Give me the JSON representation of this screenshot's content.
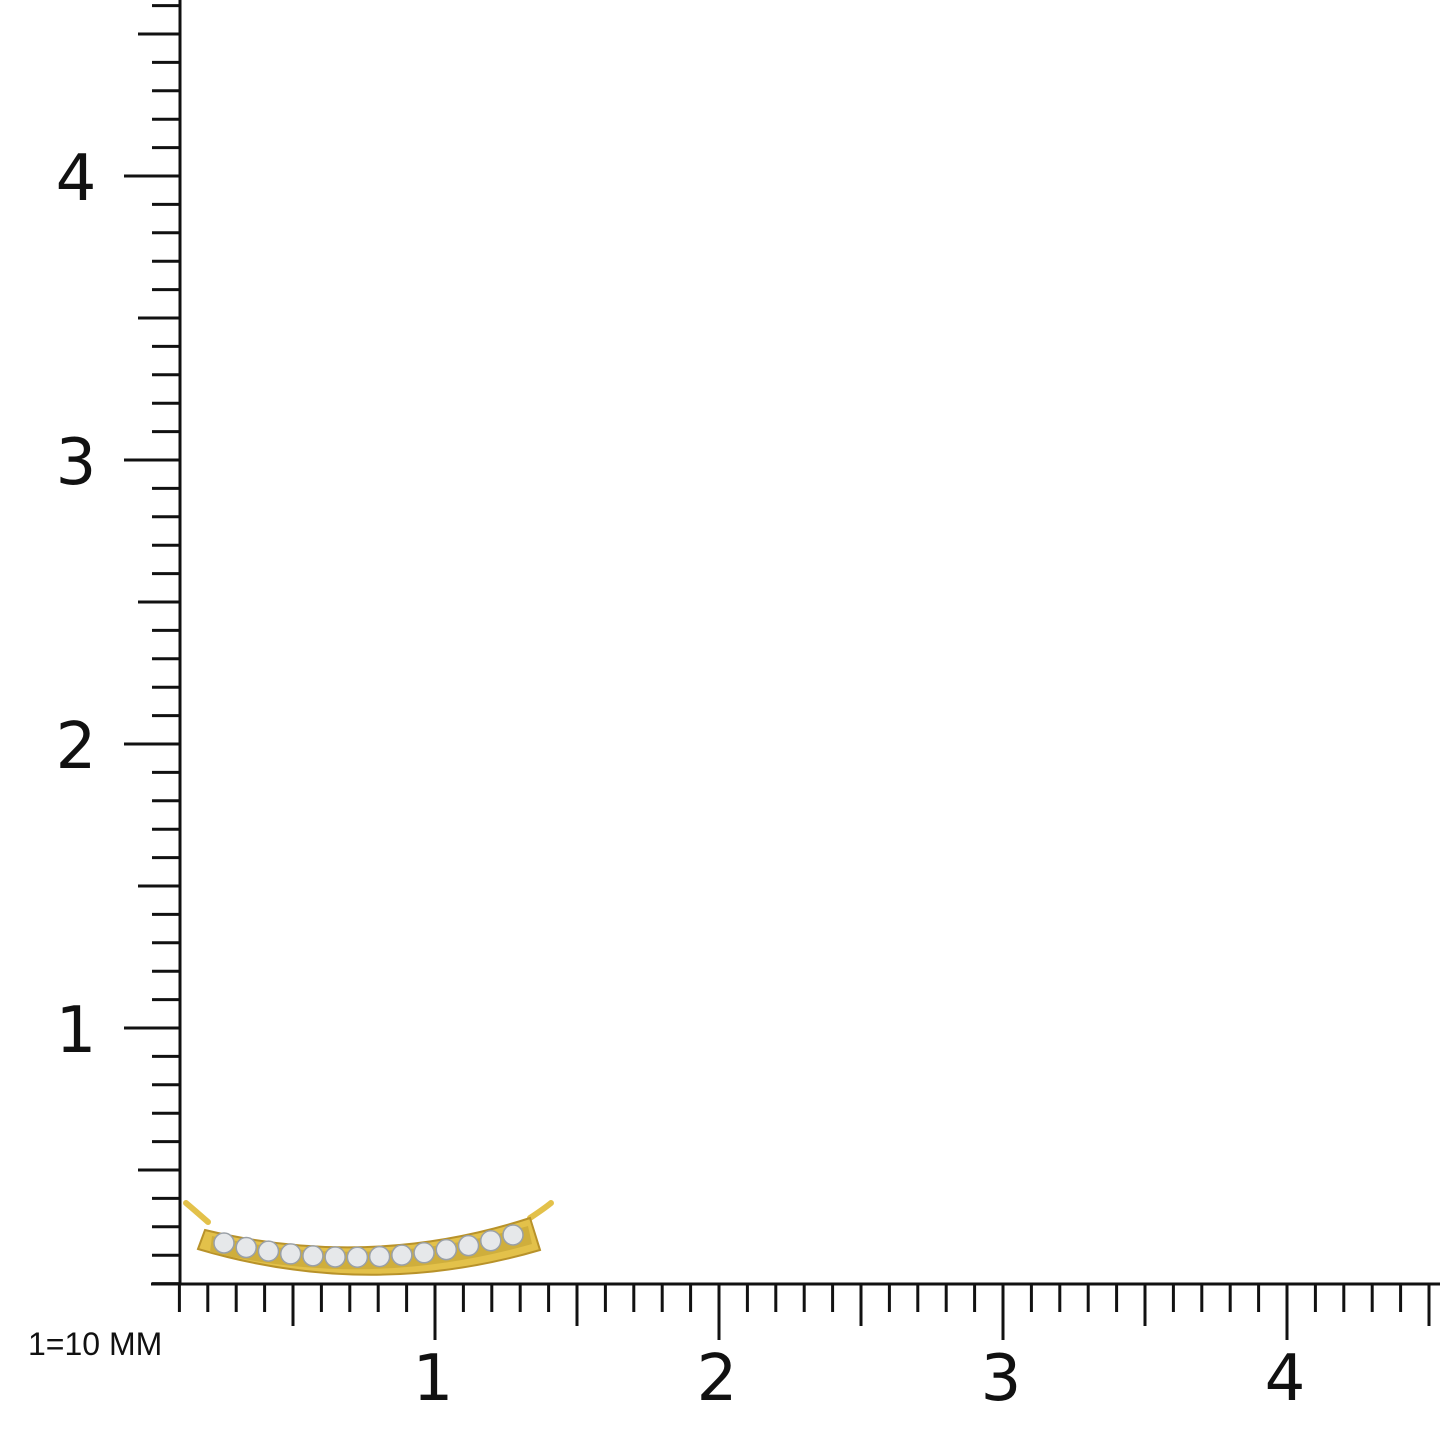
{
  "scale_note": "1=10 MM",
  "x_axis": {
    "labels": [
      "1",
      "2",
      "3",
      "4"
    ],
    "major_values": [
      1,
      2,
      3,
      4
    ],
    "range": [
      0.1,
      4.53
    ],
    "minor_step": 0.1
  },
  "y_axis": {
    "labels": [
      "1",
      "2",
      "3",
      "4"
    ],
    "major_values": [
      1,
      2,
      3,
      4
    ],
    "range": [
      0.1,
      4.62
    ],
    "minor_step": 0.1
  },
  "product": {
    "type": "curved bar pendant",
    "metal_color": "#e3c14a",
    "stone_count": 14
  },
  "colors": {
    "axis": "#111111",
    "gold": "#e3c14a",
    "gold_dark": "#b8922a",
    "stone": "#e6e8ea"
  }
}
